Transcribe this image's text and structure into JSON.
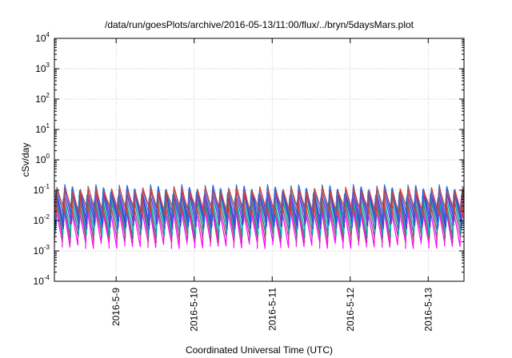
{
  "chart_data": {
    "type": "line",
    "title": "/data/run/goesPlots/archive/2016-05-13/11:00/flux/../bryn/5daysMars.plot",
    "xlabel": "Coordinated Universal Time (UTC)",
    "ylabel": "cSv/day",
    "yscale": "log",
    "ylim": [
      0.0001,
      10000
    ],
    "xlim": [
      "2016-05-08T05:00",
      "2016-05-13T11:00"
    ],
    "grid": true,
    "legend": "none",
    "y_ticks": [
      {
        "base": "10",
        "exp": "-4",
        "value": 0.0001
      },
      {
        "base": "10",
        "exp": "-3",
        "value": 0.001
      },
      {
        "base": "10",
        "exp": "-2",
        "value": 0.01
      },
      {
        "base": "10",
        "exp": "-1",
        "value": 0.1
      },
      {
        "base": "10",
        "exp": "0",
        "value": 1
      },
      {
        "base": "10",
        "exp": "1",
        "value": 10
      },
      {
        "base": "10",
        "exp": "2",
        "value": 100
      },
      {
        "base": "10",
        "exp": "3",
        "value": 1000
      },
      {
        "base": "10",
        "exp": "4",
        "value": 10000
      }
    ],
    "x_ticks": [
      {
        "label": "2016-5-9",
        "value": "2016-05-09T00:00"
      },
      {
        "label": "2016-5-10",
        "value": "2016-05-10T00:00"
      },
      {
        "label": "2016-5-11",
        "value": "2016-05-11T00:00"
      },
      {
        "label": "2016-5-12",
        "value": "2016-05-12T00:00"
      },
      {
        "label": "2016-5-13",
        "value": "2016-05-13T00:00"
      }
    ],
    "sawtooth_period_hours": 2.4,
    "series": [
      {
        "color": "#ff00ff",
        "peak": 0.035,
        "trough": 0.0016
      },
      {
        "color": "#c23b75",
        "peak": 0.045,
        "trough": 0.0025
      },
      {
        "color": "#1a8a8a",
        "peak": 0.06,
        "trough": 0.0035
      },
      {
        "color": "#00bfbf",
        "peak": 0.075,
        "trough": 0.005
      },
      {
        "color": "#7a1fd6",
        "peak": 0.09,
        "trough": 0.007
      },
      {
        "color": "#3a4fd8",
        "peak": 0.11,
        "trough": 0.009
      },
      {
        "color": "#1f6fe0",
        "peak": 0.13,
        "trough": 0.012
      },
      {
        "color": "#e0402a",
        "peak": 0.105,
        "trough": 0.018
      }
    ]
  }
}
